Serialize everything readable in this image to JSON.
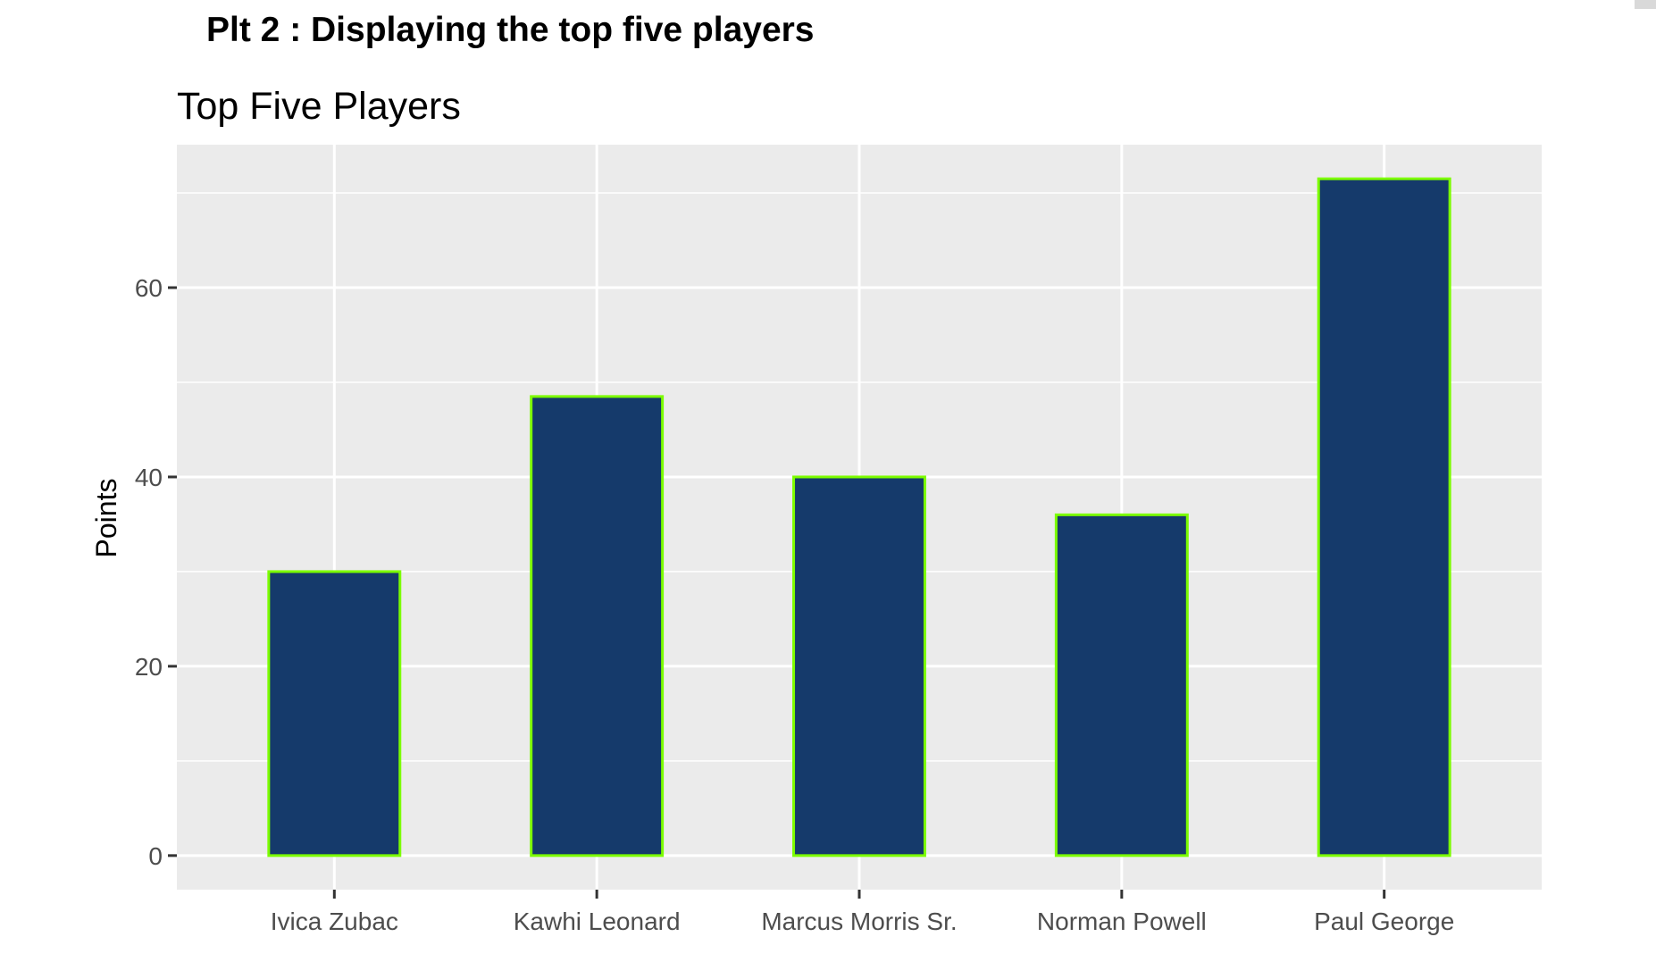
{
  "heading": "Plt 2 : Displaying the top five players",
  "colors": {
    "panel_background": "#ebebeb",
    "gridline": "#ffffff",
    "bar_fill": "#153a6b",
    "bar_outline": "#7cfc00",
    "tick_text": "#4d4d4d"
  },
  "chart_data": {
    "type": "bar",
    "title": "Top Five Players",
    "xlabel": "",
    "ylabel": "Points",
    "categories": [
      "Ivica Zubac",
      "Kawhi Leonard",
      "Marcus Morris Sr.",
      "Norman Powell",
      "Paul George"
    ],
    "values": [
      30,
      48.5,
      40,
      36,
      71.5
    ],
    "ylim": [
      -3.6,
      75.1
    ],
    "yticks": [
      0,
      20,
      40,
      60
    ],
    "grid": true,
    "legend": "none"
  }
}
